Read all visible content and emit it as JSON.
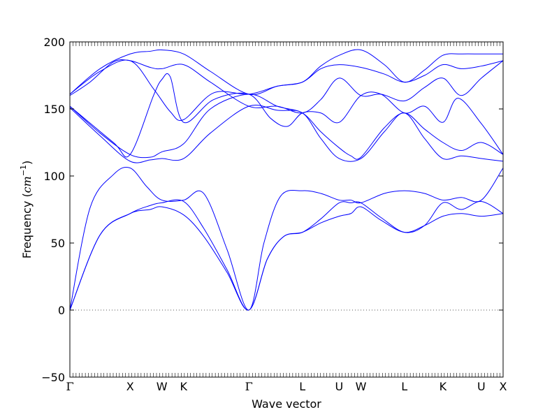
{
  "chart_data": {
    "type": "line",
    "title": "",
    "xlabel": "Wave vector",
    "ylabel_prefix": "Frequency (",
    "ylabel_unit": "cm",
    "ylabel_exponent": "−1",
    "ylabel_suffix": ")",
    "ylim": [
      -50,
      200
    ],
    "yticks": [
      -50,
      0,
      50,
      100,
      150,
      200
    ],
    "ytick_labels": [
      "−50",
      "0",
      "50",
      "100",
      "150",
      "200"
    ],
    "x_range": [
      0,
      12.95
    ],
    "high_symmetry_points": [
      {
        "label": "Γ",
        "x": 0.0
      },
      {
        "label": "X",
        "x": 1.8
      },
      {
        "label": "W",
        "x": 2.75
      },
      {
        "label": "K",
        "x": 3.4
      },
      {
        "label": "Γ",
        "x": 5.35
      },
      {
        "label": "L",
        "x": 6.95
      },
      {
        "label": "U",
        "x": 8.05
      },
      {
        "label": "W",
        "x": 8.7
      },
      {
        "label": "L",
        "x": 10.0
      },
      {
        "label": "K",
        "x": 11.15
      },
      {
        "label": "U",
        "x": 12.3
      },
      {
        "label": "X",
        "x": 12.95
      }
    ],
    "zero_line": {
      "y": 0,
      "style": "dotted"
    },
    "grid": false,
    "legend": "none",
    "line_color": "#0000ff",
    "series": [
      {
        "values": [
          [
            0,
            0
          ],
          [
            0.9,
            56
          ],
          [
            1.8,
            72
          ],
          [
            2.4,
            75
          ],
          [
            2.75,
            77
          ],
          [
            3.4,
            71
          ],
          [
            4.0,
            55
          ],
          [
            4.7,
            28
          ],
          [
            5.35,
            0
          ],
          [
            5.9,
            38
          ],
          [
            6.4,
            55
          ],
          [
            6.95,
            58
          ],
          [
            7.5,
            65
          ],
          [
            8.05,
            70
          ],
          [
            8.4,
            72
          ],
          [
            8.7,
            77
          ],
          [
            9.3,
            67
          ],
          [
            10.0,
            58
          ],
          [
            10.6,
            63
          ],
          [
            11.15,
            70
          ],
          [
            11.7,
            72
          ],
          [
            12.3,
            70
          ],
          [
            12.95,
            72
          ]
        ]
      },
      {
        "values": [
          [
            0,
            0
          ],
          [
            0.9,
            56
          ],
          [
            1.8,
            72
          ],
          [
            2.4,
            78
          ],
          [
            2.75,
            80
          ],
          [
            3.4,
            81
          ],
          [
            4.0,
            61
          ],
          [
            4.7,
            30
          ],
          [
            5.35,
            0
          ],
          [
            5.9,
            38
          ],
          [
            6.4,
            55
          ],
          [
            6.95,
            58
          ],
          [
            7.5,
            68
          ],
          [
            8.05,
            80
          ],
          [
            8.4,
            80
          ],
          [
            8.7,
            80
          ],
          [
            9.3,
            69
          ],
          [
            10.0,
            58
          ],
          [
            10.6,
            63
          ],
          [
            11.15,
            80
          ],
          [
            11.7,
            75
          ],
          [
            12.3,
            81
          ],
          [
            12.95,
            72
          ]
        ]
      },
      {
        "values": [
          [
            0,
            0
          ],
          [
            0.6,
            76
          ],
          [
            1.3,
            101
          ],
          [
            1.8,
            106
          ],
          [
            2.3,
            92
          ],
          [
            2.75,
            82
          ],
          [
            3.4,
            82
          ],
          [
            4.0,
            87
          ],
          [
            4.7,
            45
          ],
          [
            5.35,
            0
          ],
          [
            5.8,
            50
          ],
          [
            6.3,
            85
          ],
          [
            6.95,
            89
          ],
          [
            7.5,
            87
          ],
          [
            8.05,
            82
          ],
          [
            8.4,
            82
          ],
          [
            8.7,
            80
          ],
          [
            9.4,
            87
          ],
          [
            10.0,
            89
          ],
          [
            10.6,
            87
          ],
          [
            11.15,
            82
          ],
          [
            11.7,
            84
          ],
          [
            12.3,
            82
          ],
          [
            12.95,
            106
          ]
        ]
      },
      {
        "values": [
          [
            0,
            151
          ],
          [
            0.9,
            130
          ],
          [
            1.8,
            111
          ],
          [
            2.4,
            112
          ],
          [
            2.75,
            113
          ],
          [
            3.4,
            113
          ],
          [
            4.2,
            132
          ],
          [
            5.35,
            152
          ],
          [
            6.2,
            149
          ],
          [
            6.95,
            147
          ],
          [
            7.5,
            128
          ],
          [
            8.05,
            113
          ],
          [
            8.7,
            113
          ],
          [
            9.4,
            133
          ],
          [
            10.0,
            147
          ],
          [
            10.6,
            128
          ],
          [
            11.15,
            113
          ],
          [
            11.7,
            115
          ],
          [
            12.3,
            113
          ],
          [
            12.95,
            111
          ]
        ]
      },
      {
        "values": [
          [
            0,
            152
          ],
          [
            0.9,
            132
          ],
          [
            1.8,
            116
          ],
          [
            2.4,
            114
          ],
          [
            2.75,
            118
          ],
          [
            3.4,
            124
          ],
          [
            4.2,
            150
          ],
          [
            5.35,
            161
          ],
          [
            6.2,
            152
          ],
          [
            6.95,
            147
          ],
          [
            7.5,
            133
          ],
          [
            8.05,
            121
          ],
          [
            8.4,
            115
          ],
          [
            8.7,
            114
          ],
          [
            9.4,
            136
          ],
          [
            10.0,
            147
          ],
          [
            10.6,
            135
          ],
          [
            11.15,
            125
          ],
          [
            11.7,
            119
          ],
          [
            12.3,
            125
          ],
          [
            12.95,
            116
          ]
        ]
      },
      {
        "values": [
          [
            0,
            152
          ],
          [
            1.3,
            125
          ],
          [
            1.8,
            116
          ],
          [
            2.5,
            160
          ],
          [
            2.75,
            172
          ],
          [
            3.0,
            174
          ],
          [
            3.4,
            140
          ],
          [
            4.3,
            157
          ],
          [
            5.35,
            161
          ],
          [
            6.0,
            143
          ],
          [
            6.5,
            137
          ],
          [
            6.95,
            147
          ],
          [
            7.5,
            147
          ],
          [
            8.05,
            140
          ],
          [
            8.7,
            160
          ],
          [
            9.3,
            161
          ],
          [
            10.0,
            147
          ],
          [
            10.6,
            152
          ],
          [
            11.15,
            140
          ],
          [
            11.6,
            158
          ],
          [
            12.3,
            139
          ],
          [
            12.95,
            116
          ]
        ]
      },
      {
        "values": [
          [
            0,
            160
          ],
          [
            0.6,
            170
          ],
          [
            1.3,
            185
          ],
          [
            1.8,
            186
          ],
          [
            2.4,
            181
          ],
          [
            2.75,
            180
          ],
          [
            3.4,
            183
          ],
          [
            4.2,
            170
          ],
          [
            5.35,
            152
          ],
          [
            6.2,
            152
          ],
          [
            6.95,
            147
          ],
          [
            7.5,
            157
          ],
          [
            8.05,
            173
          ],
          [
            8.7,
            160
          ],
          [
            9.3,
            161
          ],
          [
            10.0,
            156
          ],
          [
            10.6,
            166
          ],
          [
            11.15,
            173
          ],
          [
            11.7,
            160
          ],
          [
            12.3,
            173
          ],
          [
            12.95,
            186
          ]
        ]
      },
      {
        "values": [
          [
            0,
            161
          ],
          [
            0.9,
            178
          ],
          [
            1.8,
            186
          ],
          [
            2.5,
            165
          ],
          [
            3.0,
            148
          ],
          [
            3.4,
            142
          ],
          [
            4.3,
            162
          ],
          [
            5.35,
            161
          ],
          [
            6.2,
            167
          ],
          [
            6.95,
            170
          ],
          [
            7.5,
            180
          ],
          [
            8.05,
            183
          ],
          [
            8.7,
            181
          ],
          [
            9.4,
            176
          ],
          [
            10.0,
            170
          ],
          [
            10.6,
            175
          ],
          [
            11.15,
            183
          ],
          [
            11.7,
            180
          ],
          [
            12.3,
            182
          ],
          [
            12.95,
            186
          ]
        ]
      },
      {
        "values": [
          [
            0,
            161
          ],
          [
            0.9,
            180
          ],
          [
            1.8,
            191
          ],
          [
            2.4,
            193
          ],
          [
            2.75,
            194
          ],
          [
            3.4,
            191
          ],
          [
            4.2,
            178
          ],
          [
            5.35,
            161
          ],
          [
            6.2,
            167
          ],
          [
            6.95,
            170
          ],
          [
            7.5,
            182
          ],
          [
            8.05,
            190
          ],
          [
            8.7,
            194
          ],
          [
            9.4,
            183
          ],
          [
            10.0,
            170
          ],
          [
            10.6,
            179
          ],
          [
            11.15,
            190
          ],
          [
            11.7,
            191
          ],
          [
            12.3,
            191
          ],
          [
            12.95,
            191
          ]
        ]
      }
    ]
  }
}
